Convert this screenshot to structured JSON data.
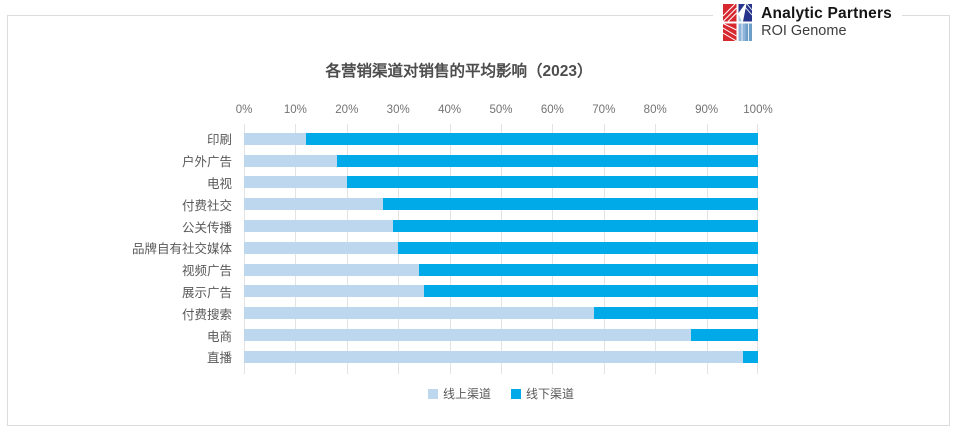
{
  "logo": {
    "line1": "Analytic Partners",
    "line2": "ROI Genome",
    "colors": {
      "red": "#d7282f",
      "navy": "#27348b",
      "steel_blue": "#8fb4d9",
      "light_blue": "#aecbe6"
    }
  },
  "chart_data": {
    "type": "bar",
    "stacked": true,
    "orientation": "horizontal",
    "title": "各营销渠道对销售的平均影响（2023）",
    "categories": [
      "印刷",
      "户外广告",
      "电视",
      "付费社交",
      "公关传播",
      "品牌自有社交媒体",
      "视频广告",
      "展示广告",
      "付费搜索",
      "电商",
      "直播"
    ],
    "series": [
      {
        "name": "线上渠道",
        "color": "#bdd7ee",
        "values": [
          12,
          18,
          20,
          27,
          29,
          30,
          34,
          35,
          68,
          87,
          97
        ]
      },
      {
        "name": "线下渠道",
        "color": "#00a9e8",
        "values": [
          88,
          82,
          80,
          73,
          71,
          70,
          66,
          65,
          32,
          13,
          3
        ]
      }
    ],
    "x_ticks": [
      "0%",
      "10%",
      "20%",
      "30%",
      "40%",
      "50%",
      "60%",
      "70%",
      "80%",
      "90%",
      "100%"
    ],
    "xlim": [
      0,
      100
    ],
    "xlabel": "",
    "ylabel": "",
    "grid": "vertical",
    "legend_position": "bottom"
  }
}
